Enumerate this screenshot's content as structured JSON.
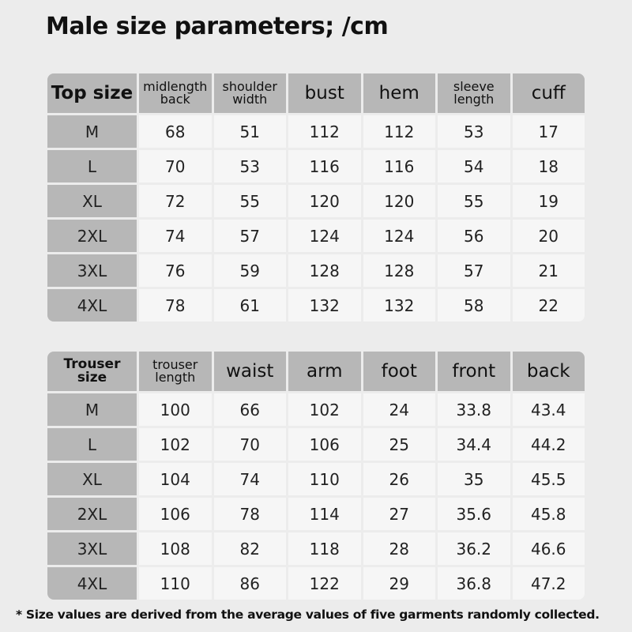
{
  "title": "Male size parameters; /cm",
  "top_table": {
    "header": [
      "Top size",
      "midlength back",
      "shoulder width",
      "bust",
      "hem",
      "sleeve length",
      "cuff"
    ],
    "rows": [
      [
        "M",
        68,
        51,
        112,
        112,
        53,
        17
      ],
      [
        "L",
        70,
        53,
        116,
        116,
        54,
        18
      ],
      [
        "XL",
        72,
        55,
        120,
        120,
        55,
        19
      ],
      [
        "2XL",
        74,
        57,
        124,
        124,
        56,
        20
      ],
      [
        "3XL",
        76,
        59,
        128,
        128,
        57,
        21
      ],
      [
        "4XL",
        78,
        61,
        132,
        132,
        58,
        22
      ]
    ]
  },
  "trouser_table": {
    "header": [
      "Trouser size",
      "trouser length",
      "waist",
      "arm",
      "foot",
      "front",
      "back"
    ],
    "rows": [
      [
        "M",
        100,
        66,
        102,
        24,
        33.8,
        43.4
      ],
      [
        "L",
        102,
        70,
        106,
        25,
        34.4,
        44.2
      ],
      [
        "XL",
        104,
        74,
        110,
        26,
        35,
        45.5
      ],
      [
        "2XL",
        106,
        78,
        114,
        27,
        35.6,
        45.8
      ],
      [
        "3XL",
        108,
        82,
        118,
        28,
        36.2,
        46.6
      ],
      [
        "4XL",
        110,
        86,
        122,
        29,
        36.8,
        47.2
      ]
    ]
  },
  "footnote": "* Size values are derived from the average values of five garments randomly collected."
}
